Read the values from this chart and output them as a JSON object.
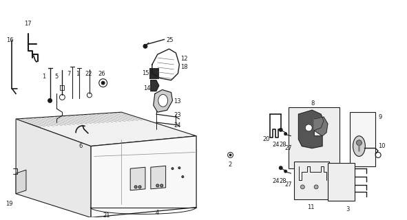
{
  "bg_color": "#ffffff",
  "line_color": "#1a1a1a",
  "fig_width": 5.91,
  "fig_height": 3.2,
  "dpi": 100
}
